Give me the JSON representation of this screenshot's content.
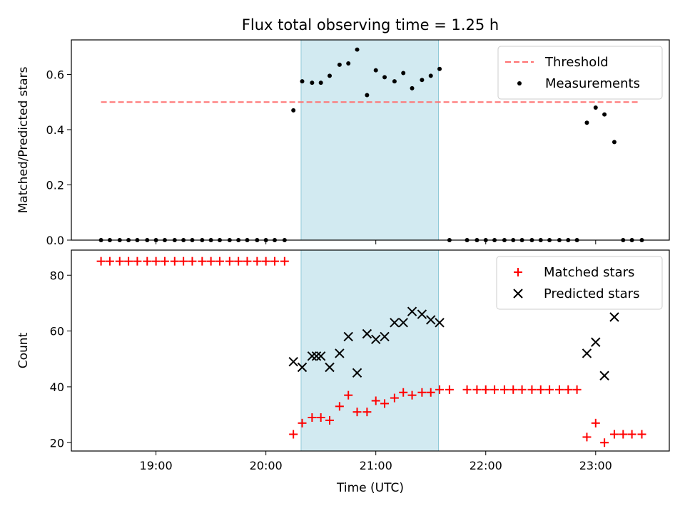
{
  "chart_data": {
    "title": "Flux total observing time = 1.25 h",
    "xlabel": "Time (UTC)",
    "x_ticks": [
      "19:00",
      "20:00",
      "21:00",
      "22:00",
      "23:00"
    ],
    "x_tick_values": [
      19.0,
      20.0,
      21.0,
      22.0,
      23.0
    ],
    "xlim": [
      18.23,
      23.67
    ],
    "highlight_span": [
      20.32,
      21.57
    ],
    "highlight_color": "#add8e6",
    "panels": [
      {
        "type": "scatter",
        "ylabel": "Matched/Predicted stars",
        "ylim": [
          0,
          0.725
        ],
        "y_ticks": [
          0.0,
          0.2,
          0.4,
          0.6
        ],
        "y_tick_labels": [
          "0.0",
          "0.2",
          "0.4",
          "0.6"
        ],
        "legend_position": "top-right",
        "threshold": {
          "name": "Threshold",
          "value": 0.5,
          "x_range": [
            18.5,
            23.4
          ],
          "color": "#ff7070",
          "style": "dashed"
        },
        "series": [
          {
            "name": "Measurements",
            "marker": "dot",
            "color": "#000000",
            "x": [
              18.5,
              18.58,
              18.67,
              18.75,
              18.83,
              18.92,
              19.0,
              19.08,
              19.17,
              19.25,
              19.33,
              19.42,
              19.5,
              19.58,
              19.67,
              19.75,
              19.83,
              19.92,
              20.0,
              20.08,
              20.17,
              20.25,
              20.33,
              20.42,
              20.5,
              20.58,
              20.67,
              20.75,
              20.83,
              20.92,
              21.0,
              21.08,
              21.17,
              21.25,
              21.33,
              21.42,
              21.5,
              21.58,
              21.67,
              21.83,
              21.92,
              22.0,
              22.08,
              22.17,
              22.25,
              22.33,
              22.42,
              22.5,
              22.58,
              22.67,
              22.75,
              22.83,
              22.92,
              23.0,
              23.08,
              23.17,
              23.25,
              23.33,
              23.42
            ],
            "y": [
              0,
              0,
              0,
              0,
              0,
              0,
              0,
              0,
              0,
              0,
              0,
              0,
              0,
              0,
              0,
              0,
              0,
              0,
              0,
              0,
              0,
              0.47,
              0.575,
              0.57,
              0.57,
              0.595,
              0.635,
              0.64,
              0.69,
              0.525,
              0.615,
              0.59,
              0.575,
              0.605,
              0.55,
              0.58,
              0.595,
              0.62,
              0,
              0,
              0,
              0,
              0,
              0,
              0,
              0,
              0,
              0,
              0,
              0,
              0,
              0,
              0.425,
              0.48,
              0.455,
              0.355,
              0,
              0,
              0
            ]
          }
        ]
      },
      {
        "type": "scatter",
        "ylabel": "Count",
        "ylim": [
          17,
          89
        ],
        "y_ticks": [
          20,
          40,
          60,
          80
        ],
        "y_tick_labels": [
          "20",
          "40",
          "60",
          "80"
        ],
        "legend_position": "top-right",
        "series": [
          {
            "name": "Matched stars",
            "marker": "plus",
            "color": "#ff0000",
            "x": [
              18.5,
              18.58,
              18.67,
              18.75,
              18.83,
              18.92,
              19.0,
              19.08,
              19.17,
              19.25,
              19.33,
              19.42,
              19.5,
              19.58,
              19.67,
              19.75,
              19.83,
              19.92,
              20.0,
              20.08,
              20.17,
              20.25,
              20.33,
              20.42,
              20.5,
              20.58,
              20.67,
              20.75,
              20.83,
              20.92,
              21.0,
              21.08,
              21.17,
              21.25,
              21.33,
              21.42,
              21.5,
              21.58,
              21.67,
              21.83,
              21.92,
              22.0,
              22.08,
              22.17,
              22.25,
              22.33,
              22.42,
              22.5,
              22.58,
              22.67,
              22.75,
              22.83,
              22.92,
              23.0,
              23.08,
              23.17,
              23.25,
              23.33,
              23.42
            ],
            "y": [
              85,
              85,
              85,
              85,
              85,
              85,
              85,
              85,
              85,
              85,
              85,
              85,
              85,
              85,
              85,
              85,
              85,
              85,
              85,
              85,
              85,
              23,
              27,
              29,
              29,
              28,
              33,
              37,
              31,
              31,
              35,
              34,
              36,
              38,
              37,
              38,
              38,
              39,
              39,
              39,
              39,
              39,
              39,
              39,
              39,
              39,
              39,
              39,
              39,
              39,
              39,
              39,
              22,
              27,
              20,
              23,
              23,
              23,
              23
            ]
          },
          {
            "name": "Predicted stars",
            "marker": "x",
            "color": "#000000",
            "x": [
              20.25,
              20.33,
              20.42,
              20.46,
              20.5,
              20.58,
              20.67,
              20.75,
              20.83,
              20.92,
              21.0,
              21.08,
              21.17,
              21.25,
              21.33,
              21.42,
              21.5,
              21.58,
              22.92,
              23.0,
              23.08,
              23.17
            ],
            "y": [
              49,
              47,
              51,
              51,
              51,
              47,
              52,
              58,
              45,
              59,
              57,
              58,
              63,
              63,
              67,
              66,
              64,
              63,
              52,
              56,
              44,
              65
            ]
          }
        ]
      }
    ]
  }
}
